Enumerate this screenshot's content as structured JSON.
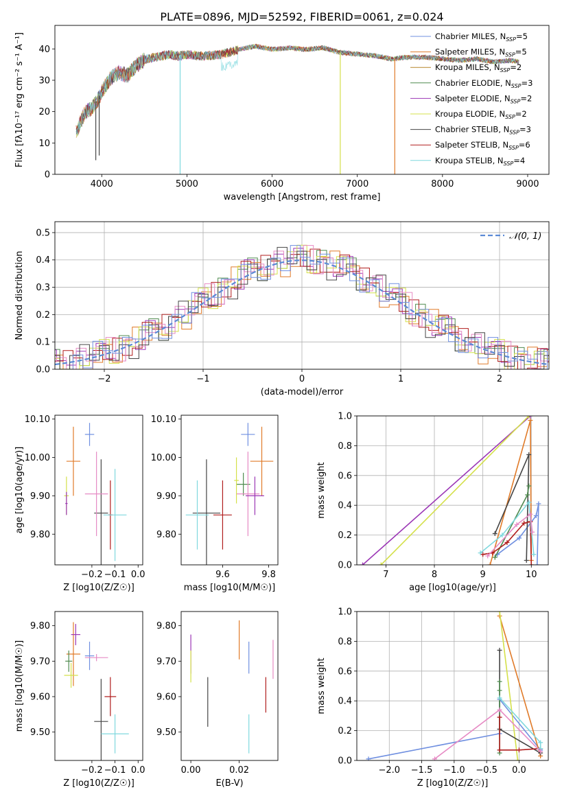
{
  "title": "PLATE=0896, MJD=52592, FIBERID=0061, z=0.024",
  "colors": [
    "#6f8fe0",
    "#e07a28",
    "#b5852a",
    "#4f8a4f",
    "#9b36b5",
    "#d4e04a",
    "#444444",
    "#b01c1c",
    "#7fd8de",
    "#e68ac4"
  ],
  "chart_data": [
    {
      "id": "spectrum",
      "type": "line",
      "title": "PLATE=0896, MJD=52592, FIBERID=0061, z=0.024",
      "xlabel": "wavelength [Angstrom, rest frame]",
      "ylabel": "Flux [fλ10⁻¹⁷ erg cm⁻² s⁻¹ A⁻¹]",
      "xlim": [
        3450,
        9250
      ],
      "ylim": [
        0,
        47.5
      ],
      "xticks": [
        4000,
        5000,
        6000,
        7000,
        8000,
        9000
      ],
      "yticks": [
        0,
        10,
        20,
        30,
        40
      ],
      "legend_position": "top-right",
      "legend": [
        {
          "label": "Chabrier MILES, N_SSP=5",
          "text": "Chabrier MILES, N",
          "n": "=5",
          "color": "#6f8fe0"
        },
        {
          "label": "Salpeter MILES, N_SSP=5",
          "text": "Salpeter MILES, N",
          "n": "=5",
          "color": "#e07a28"
        },
        {
          "label": "Kroupa MILES, N_SSP=2",
          "text": "Kroupa MILES, N",
          "n": "=2",
          "color": "#b5852a"
        },
        {
          "label": "Chabrier ELODIE, N_SSP=3",
          "text": "Chabrier ELODIE, N",
          "n": "=3",
          "color": "#4f8a4f"
        },
        {
          "label": "Salpeter ELODIE, N_SSP=2",
          "text": "Salpeter ELODIE, N",
          "n": "=2",
          "color": "#9b36b5"
        },
        {
          "label": "Kroupa ELODIE, N_SSP=2",
          "text": "Kroupa ELODIE, N",
          "n": "=2",
          "color": "#d4e04a"
        },
        {
          "label": "Chabrier STELIB, N_SSP=3",
          "text": "Chabrier STELIB, N",
          "n": "=3",
          "color": "#444444"
        },
        {
          "label": "Salpeter STELIB, N_SSP=6",
          "text": "Salpeter STELIB, N",
          "n": "=6",
          "color": "#b01c1c"
        },
        {
          "label": "Kroupa STELIB, N_SSP=4",
          "text": "Kroupa STELIB, N",
          "n": "=4",
          "color": "#7fd8de"
        }
      ],
      "continuum": [
        [
          3700,
          14
        ],
        [
          3800,
          20
        ],
        [
          3900,
          22
        ],
        [
          3950,
          24
        ],
        [
          4000,
          27
        ],
        [
          4100,
          31
        ],
        [
          4200,
          33
        ],
        [
          4300,
          32
        ],
        [
          4400,
          35
        ],
        [
          4500,
          37
        ],
        [
          4600,
          37.5
        ],
        [
          4700,
          38
        ],
        [
          4800,
          38.5
        ],
        [
          4900,
          38
        ],
        [
          5000,
          38.5
        ],
        [
          5200,
          38
        ],
        [
          5400,
          38.5
        ],
        [
          5600,
          40
        ],
        [
          5800,
          41
        ],
        [
          6000,
          40
        ],
        [
          6200,
          40.5
        ],
        [
          6400,
          40
        ],
        [
          6600,
          40.5
        ],
        [
          6800,
          39
        ],
        [
          7000,
          38.5
        ],
        [
          7200,
          38
        ],
        [
          7400,
          37
        ],
        [
          7600,
          37.5
        ],
        [
          7800,
          37.5
        ],
        [
          8000,
          37
        ],
        [
          8200,
          36.5
        ],
        [
          8400,
          37
        ],
        [
          8600,
          36
        ],
        [
          8800,
          36.5
        ],
        [
          8900,
          36
        ]
      ],
      "dips": [
        {
          "x": 3930,
          "y": 4.5,
          "color": "#444444"
        },
        {
          "x": 3970,
          "y": 6,
          "color": "#444444"
        },
        {
          "x": 4920,
          "y": 0,
          "color": "#7fd8de"
        },
        {
          "x": 6800,
          "y": 0,
          "color": "#d4e04a"
        },
        {
          "x": 7440,
          "y": 0,
          "color": "#e07a28"
        }
      ]
    },
    {
      "id": "residuals",
      "type": "histogram",
      "xlabel": "(data-model)/error",
      "ylabel": "Normed distribution",
      "xlim": [
        -2.5,
        2.5
      ],
      "ylim": [
        0,
        0.54
      ],
      "xticks": [
        -2,
        -1,
        0,
        1,
        2
      ],
      "yticks": [
        0,
        0.1,
        0.2,
        0.3,
        0.4,
        0.5
      ],
      "grid": true,
      "legend_position": "top-right",
      "reference_label": "𝒩(0, 1)",
      "reference_color": "#5b8ad6",
      "bin_width": 0.1,
      "jitter": [
        [
          0.02,
          -0.03,
          0.04,
          -0.01,
          0.03,
          0.05,
          -0.04,
          0.02,
          -0.02,
          0.01
        ],
        [
          -0.02,
          0.03,
          -0.04,
          0.02,
          0.05,
          -0.01,
          0.03,
          -0.03,
          0.01,
          -0.05
        ],
        [
          0.01,
          0.04,
          -0.02,
          -0.04,
          0.02,
          -0.03,
          0.05,
          0.01,
          -0.01,
          0.03
        ],
        [
          -0.03,
          -0.02,
          0.03,
          0.05,
          -0.04,
          0.02,
          -0.01,
          0.04,
          0.02,
          -0.02
        ],
        [
          0.04,
          0.01,
          -0.03,
          0.02,
          -0.02,
          0.04,
          -0.03,
          -0.02,
          0.05,
          0.01
        ]
      ]
    },
    {
      "id": "age-vs-Z",
      "type": "errorbar",
      "xlabel": "Z [log10(Z/Z☉)]",
      "ylabel": "age [log10(age/yr)]",
      "xlim": [
        -0.36,
        0.02
      ],
      "ylim": [
        9.72,
        10.11
      ],
      "xticks": [
        -0.2,
        -0.1,
        0.0
      ],
      "yticks": [
        9.8,
        9.9,
        10.0,
        10.1
      ],
      "points": [
        {
          "x": -0.21,
          "xerr": 0.02,
          "y": 10.06,
          "yerr": 0.03,
          "color": "#6f8fe0"
        },
        {
          "x": -0.28,
          "xerr": 0.03,
          "y": 9.99,
          "yerr": 0.09,
          "color": "#e07a28"
        },
        {
          "x": -0.31,
          "xerr": 0.01,
          "y": 9.9,
          "yerr": 0.05,
          "color": "#d4e04a"
        },
        {
          "x": -0.16,
          "xerr": 0.03,
          "y": 9.855,
          "yerr": 0.14,
          "color": "#444444"
        },
        {
          "x": -0.18,
          "xerr": 0.05,
          "y": 9.905,
          "yerr": 0.11,
          "color": "#e68ac4"
        },
        {
          "x": -0.12,
          "xerr": 0.01,
          "y": 9.85,
          "yerr": 0.09,
          "color": "#b01c1c"
        },
        {
          "x": -0.1,
          "xerr": 0.05,
          "y": 9.85,
          "yerr": 0.12,
          "color": "#7fd8de"
        },
        {
          "x": -0.31,
          "xerr": 0.005,
          "y": 9.88,
          "yerr": 0.03,
          "color": "#9b36b5"
        }
      ]
    },
    {
      "id": "age-vs-mass",
      "type": "errorbar",
      "xlabel": "mass [log10(M/M☉)]",
      "ylabel": "",
      "xlim": [
        9.42,
        9.84
      ],
      "ylim": [
        9.72,
        10.11
      ],
      "xticks": [
        9.6,
        9.8
      ],
      "yticks": [
        9.8,
        9.9,
        10.0,
        10.1
      ],
      "points": [
        {
          "x": 9.71,
          "xerr": 0.03,
          "y": 10.06,
          "yerr": 0.03,
          "color": "#6f8fe0"
        },
        {
          "x": 9.77,
          "xerr": 0.05,
          "y": 9.99,
          "yerr": 0.09,
          "color": "#e07a28"
        },
        {
          "x": 9.53,
          "xerr": 0.06,
          "y": 9.855,
          "yerr": 0.14,
          "color": "#444444"
        },
        {
          "x": 9.6,
          "xerr": 0.04,
          "y": 9.85,
          "yerr": 0.09,
          "color": "#b01c1c"
        },
        {
          "x": 9.49,
          "xerr": 0.05,
          "y": 9.85,
          "yerr": 0.09,
          "color": "#7fd8de"
        },
        {
          "x": 9.69,
          "xerr": 0.03,
          "y": 9.93,
          "yerr": 0.03,
          "color": "#4f8a4f"
        },
        {
          "x": 9.71,
          "xerr": 0.05,
          "y": 9.905,
          "yerr": 0.11,
          "color": "#e68ac4"
        },
        {
          "x": 9.74,
          "xerr": 0.04,
          "y": 9.9,
          "yerr": 0.05,
          "color": "#9b36b5"
        },
        {
          "x": 9.66,
          "xerr": 0.01,
          "y": 9.94,
          "yerr": 0.06,
          "color": "#d4e04a"
        }
      ]
    },
    {
      "id": "weight-vs-age",
      "type": "line",
      "xlabel": "age [log10(age/yr)]",
      "ylabel": "mass weight",
      "xlim": [
        6.4,
        10.35
      ],
      "ylim": [
        0,
        1
      ],
      "xticks": [
        7,
        8,
        9,
        10
      ],
      "yticks": [
        0.0,
        0.2,
        0.4,
        0.6,
        0.8,
        1.0
      ],
      "grid": true,
      "series": [
        {
          "color": "#6f8fe0",
          "points": [
            [
              9.3,
              0.07
            ],
            [
              9.75,
              0.18
            ],
            [
              10.1,
              0.33
            ],
            [
              10.15,
              0.41
            ],
            [
              10.12,
              0
            ]
          ]
        },
        {
          "color": "#e07a28",
          "points": [
            [
              9.15,
              0
            ],
            [
              9.98,
              0.97
            ],
            [
              10.0,
              0.03
            ]
          ]
        },
        {
          "color": "#9b36b5",
          "points": [
            [
              6.52,
              0
            ],
            [
              9.98,
              1.0
            ]
          ]
        },
        {
          "color": "#d4e04a",
          "points": [
            [
              6.9,
              0
            ],
            [
              9.95,
              1.0
            ]
          ]
        },
        {
          "color": "#444444",
          "points": [
            [
              9.25,
              0.21
            ],
            [
              9.95,
              0.74
            ],
            [
              9.9,
              0.03
            ]
          ]
        },
        {
          "color": "#4f8a4f",
          "points": [
            [
              9.25,
              0.05
            ],
            [
              9.92,
              0.47
            ],
            [
              9.95,
              0.53
            ]
          ]
        },
        {
          "color": "#b01c1c",
          "points": [
            [
              9.0,
              0.07
            ],
            [
              9.2,
              0.08
            ],
            [
              9.5,
              0.15
            ],
            [
              9.85,
              0.28
            ],
            [
              9.98,
              0.29
            ],
            [
              10.0,
              0.0
            ]
          ]
        },
        {
          "color": "#7fd8de",
          "points": [
            [
              8.95,
              0.08
            ],
            [
              9.4,
              0.2
            ],
            [
              9.95,
              0.42
            ],
            [
              10.05,
              0.07
            ]
          ]
        },
        {
          "color": "#e68ac4",
          "points": [
            [
              9.1,
              0.06
            ],
            [
              9.7,
              0.27
            ],
            [
              9.98,
              0.34
            ],
            [
              10.02,
              0.22
            ]
          ]
        }
      ]
    },
    {
      "id": "mass-vs-Z",
      "type": "errorbar",
      "xlabel": "Z [log10(Z/Z☉)]",
      "ylabel": "mass [log10(M/M☉)]",
      "xlim": [
        -0.36,
        0.02
      ],
      "ylim": [
        9.42,
        9.84
      ],
      "xticks": [
        -0.2,
        -0.1,
        0.0
      ],
      "yticks": [
        9.5,
        9.6,
        9.7,
        9.8
      ],
      "points": [
        {
          "x": -0.28,
          "xerr": 0.03,
          "y": 9.72,
          "yerr": 0.09,
          "color": "#e07a28"
        },
        {
          "x": -0.27,
          "xerr": 0.02,
          "y": 9.775,
          "yerr": 0.03,
          "color": "#9b36b5"
        },
        {
          "x": -0.3,
          "xerr": 0.015,
          "y": 9.7,
          "yerr": 0.03,
          "color": "#4f8a4f"
        },
        {
          "x": -0.29,
          "xerr": 0.03,
          "y": 9.66,
          "yerr": 0.035,
          "color": "#d4e04a"
        },
        {
          "x": -0.21,
          "xerr": 0.02,
          "y": 9.715,
          "yerr": 0.04,
          "color": "#6f8fe0"
        },
        {
          "x": -0.18,
          "xerr": 0.05,
          "y": 9.71,
          "yerr": 0.01,
          "color": "#e68ac4"
        },
        {
          "x": -0.16,
          "xerr": 0.03,
          "y": 9.53,
          "yerr": 0.12,
          "color": "#444444"
        },
        {
          "x": -0.12,
          "xerr": 0.025,
          "y": 9.6,
          "yerr": 0.055,
          "color": "#b01c1c"
        },
        {
          "x": -0.1,
          "xerr": 0.06,
          "y": 9.495,
          "yerr": 0.055,
          "color": "#7fd8de"
        }
      ]
    },
    {
      "id": "mass-vs-EBV",
      "type": "errorbar",
      "xlabel": "E(B-V)",
      "ylabel": "",
      "xlim": [
        -0.004,
        0.036
      ],
      "ylim": [
        9.42,
        9.84
      ],
      "xticks": [
        0.0,
        0.02
      ],
      "yticks": [
        9.5,
        9.6,
        9.7,
        9.8
      ],
      "points": [
        {
          "x": 0.0,
          "xerr": 0,
          "y": 9.72,
          "yerr": 0.055,
          "color": "#9b36b5"
        },
        {
          "x": 0.0,
          "xerr": 0,
          "y": 9.685,
          "yerr": 0.045,
          "color": "#d4e04a"
        },
        {
          "x": 0.007,
          "xerr": 0,
          "y": 9.585,
          "yerr": 0.07,
          "color": "#444444"
        },
        {
          "x": 0.02,
          "xerr": 0,
          "y": 9.76,
          "yerr": 0.055,
          "color": "#e07a28"
        },
        {
          "x": 0.024,
          "xerr": 0,
          "y": 9.71,
          "yerr": 0.045,
          "color": "#6f8fe0"
        },
        {
          "x": 0.024,
          "xerr": 0,
          "y": 9.495,
          "yerr": 0.055,
          "color": "#7fd8de"
        },
        {
          "x": 0.031,
          "xerr": 0,
          "y": 9.605,
          "yerr": 0.05,
          "color": "#b01c1c"
        },
        {
          "x": 0.034,
          "xerr": 0,
          "y": 9.705,
          "yerr": 0.055,
          "color": "#e68ac4"
        }
      ]
    },
    {
      "id": "weight-vs-Z",
      "type": "line",
      "xlabel": "Z [log10(Z/Z☉)]",
      "ylabel": "mass weight",
      "xlim": [
        -2.5,
        0.45
      ],
      "ylim": [
        0,
        1
      ],
      "xticks": [
        -2.0,
        -1.5,
        -1.0,
        -0.5,
        0.0
      ],
      "yticks": [
        0.0,
        0.2,
        0.4,
        0.6,
        0.8,
        1.0
      ],
      "grid": true,
      "series": [
        {
          "color": "#6f8fe0",
          "points": [
            [
              -2.32,
              0.01
            ],
            [
              -0.3,
              0.18
            ],
            [
              -0.3,
              0.41
            ],
            [
              0.33,
              0.07
            ]
          ]
        },
        {
          "color": "#e07a28",
          "points": [
            [
              -0.3,
              0.97
            ],
            [
              0.33,
              0.03
            ]
          ]
        },
        {
          "color": "#d4e04a",
          "points": [
            [
              -0.3,
              1.0
            ],
            [
              -0.02,
              0
            ]
          ]
        },
        {
          "color": "#444444",
          "points": [
            [
              -0.3,
              0.74
            ],
            [
              -0.3,
              0.21
            ],
            [
              0.33,
              0.05
            ]
          ]
        },
        {
          "color": "#4f8a4f",
          "points": [
            [
              -0.3,
              0.53
            ],
            [
              -0.3,
              0.47
            ],
            [
              -0.3,
              0.05
            ]
          ]
        },
        {
          "color": "#b01c1c",
          "points": [
            [
              -0.3,
              0.29
            ],
            [
              -0.3,
              0.07
            ],
            [
              0.0,
              0.07
            ],
            [
              0.33,
              0.08
            ]
          ]
        },
        {
          "color": "#7fd8de",
          "points": [
            [
              -0.3,
              0.42
            ],
            [
              0.33,
              0.12
            ],
            [
              0.33,
              0.08
            ]
          ]
        },
        {
          "color": "#e68ac4",
          "points": [
            [
              -1.3,
              0.01
            ],
            [
              -0.3,
              0.34
            ],
            [
              0.33,
              0.06
            ]
          ]
        }
      ]
    }
  ]
}
